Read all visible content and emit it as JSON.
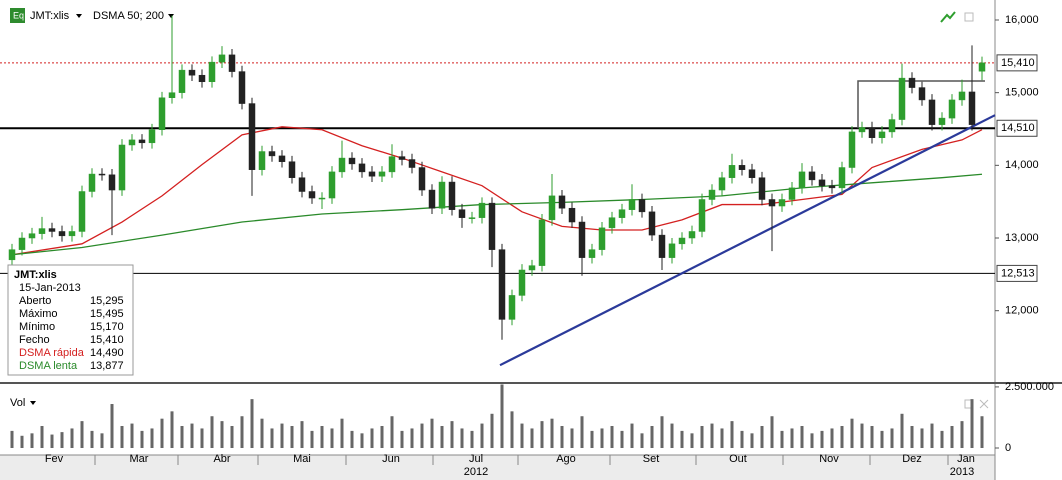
{
  "chart_data": {
    "type": "candlestick",
    "header": {
      "symbol": "JMT:xlis",
      "indicator": "DSMA 50; 200",
      "volume_label": "Vol"
    },
    "xlim": [
      -1.2,
      98.3
    ],
    "ylim": [
      11005,
      16275
    ],
    "yticks": [
      {
        "value": 12000,
        "label": "12,000"
      },
      {
        "value": 13000,
        "label": "13,000"
      },
      {
        "value": 14000,
        "label": "14,000"
      },
      {
        "value": 15000,
        "label": "15,000"
      },
      {
        "value": 16000,
        "label": "16,000"
      }
    ],
    "xticks": [
      {
        "value": 4.2,
        "label": "Fev"
      },
      {
        "value": 12.7,
        "label": "Mar"
      },
      {
        "value": 21,
        "label": "Abr"
      },
      {
        "value": 29,
        "label": "Mai"
      },
      {
        "value": 37.9,
        "label": "Jun"
      },
      {
        "value": 46.4,
        "label": "Jul"
      },
      {
        "value": 55.4,
        "label": "Ago"
      },
      {
        "value": 63.9,
        "label": "Set"
      },
      {
        "value": 72.6,
        "label": "Out"
      },
      {
        "value": 81.7,
        "label": "Nov"
      },
      {
        "value": 90,
        "label": "Dez"
      },
      {
        "value": 95.4,
        "label": "Jan"
      }
    ],
    "month_starts": [
      8.3,
      16.6,
      24.6,
      33.4,
      42.1,
      50.6,
      59.8,
      68.4,
      77.1,
      85.8,
      93.6
    ],
    "year_labels": [
      {
        "value": 46.4,
        "label": "2012"
      },
      {
        "value": 95,
        "label": "2013"
      }
    ],
    "up_color": "#2e9e2e",
    "down_color": "#222222",
    "open": [
      12700,
      12840,
      13000,
      13060,
      13130,
      13090,
      13030,
      13090,
      13640,
      13880,
      13870,
      13660,
      14280,
      14350,
      14310,
      14490,
      14930,
      15000,
      15310,
      15240,
      15150,
      15420,
      15520,
      15290,
      14850,
      13940,
      14190,
      14130,
      14050,
      13830,
      13640,
      13550,
      13550,
      13910,
      14100,
      14020,
      13910,
      13850,
      13910,
      14120,
      14080,
      13970,
      13660,
      13410,
      13770,
      13390,
      13280,
      13280,
      13480,
      12840,
      11880,
      12210,
      12560,
      12620,
      13250,
      13580,
      13410,
      13220,
      12730,
      12840,
      13140,
      13280,
      13390,
      13530,
      13360,
      13040,
      12730,
      12920,
      13000,
      13090,
      13530,
      13660,
      13830,
      14000,
      13940,
      13830,
      13530,
      13440,
      13530,
      13690,
      13910,
      13800,
      13720,
      13690,
      13970,
      14460,
      14520,
      14380,
      14460,
      14630,
      15200,
      15070,
      14900,
      14560,
      14650,
      14900,
      15010,
      15295
    ],
    "high": [
      12920,
      13080,
      13140,
      13290,
      13210,
      13170,
      13170,
      13720,
      13960,
      13960,
      13950,
      14360,
      14430,
      14430,
      14570,
      15010,
      16060,
      15390,
      15390,
      15320,
      15500,
      15640,
      15600,
      15370,
      14930,
      14270,
      14270,
      14210,
      14130,
      13910,
      13720,
      13630,
      13990,
      14340,
      14180,
      14100,
      13990,
      13990,
      14290,
      14200,
      14160,
      14050,
      13740,
      13850,
      13850,
      13470,
      13360,
      13560,
      13560,
      12920,
      12290,
      12640,
      12700,
      13330,
      13880,
      13660,
      13490,
      13300,
      12920,
      13220,
      13360,
      13470,
      13740,
      13610,
      13440,
      13120,
      13000,
      13080,
      13170,
      13610,
      13740,
      13910,
      14160,
      14080,
      14020,
      13910,
      13610,
      13610,
      13770,
      14030,
      13990,
      13880,
      13800,
      14050,
      14540,
      14600,
      14600,
      14540,
      14710,
      15400,
      15280,
      15150,
      14980,
      14730,
      14980,
      15180,
      15650,
      15495
    ],
    "low": [
      12620,
      12760,
      12920,
      12980,
      13010,
      12950,
      12950,
      13010,
      13560,
      13790,
      13040,
      13580,
      14200,
      14230,
      14230,
      14410,
      14850,
      14920,
      15160,
      15070,
      15070,
      15340,
      15210,
      14770,
      13580,
      13860,
      14050,
      13970,
      13750,
      13560,
      13470,
      13400,
      13470,
      13830,
      13940,
      13830,
      13770,
      13770,
      13830,
      14000,
      13890,
      13580,
      13330,
      13330,
      13310,
      13140,
      13200,
      13200,
      12600,
      11600,
      11800,
      12130,
      12480,
      12540,
      13170,
      13330,
      13140,
      12480,
      12650,
      12760,
      13060,
      13200,
      13310,
      13280,
      12960,
      12560,
      12650,
      12840,
      12920,
      13010,
      13450,
      13580,
      13750,
      13860,
      13750,
      13450,
      12820,
      13360,
      13450,
      13610,
      13720,
      13640,
      13610,
      13610,
      13890,
      14380,
      14300,
      14300,
      14380,
      14550,
      14990,
      14820,
      14480,
      14480,
      14570,
      14820,
      14480,
      15170
    ],
    "close": [
      12840,
      13000,
      13060,
      13130,
      13090,
      13030,
      13090,
      13640,
      13880,
      13870,
      13660,
      14280,
      14350,
      14310,
      14490,
      14930,
      15000,
      15310,
      15240,
      15150,
      15420,
      15520,
      15290,
      14850,
      13940,
      14190,
      14130,
      14050,
      13830,
      13640,
      13550,
      13550,
      13910,
      14100,
      14020,
      13910,
      13850,
      13910,
      14120,
      14080,
      13970,
      13660,
      13410,
      13770,
      13390,
      13280,
      13280,
      13480,
      12840,
      11880,
      12210,
      12560,
      12620,
      13250,
      13580,
      13410,
      13220,
      12730,
      12840,
      13140,
      13280,
      13390,
      13530,
      13360,
      13040,
      12730,
      12920,
      13000,
      13090,
      13530,
      13660,
      13830,
      14000,
      13940,
      13830,
      13530,
      13440,
      13530,
      13690,
      13910,
      13800,
      13720,
      13690,
      13970,
      14460,
      14520,
      14380,
      14460,
      14630,
      15200,
      15070,
      14900,
      14560,
      14650,
      14900,
      15010,
      14560,
      15410
    ],
    "series": [
      {
        "name": "DSMA rápida",
        "color": "#d42020",
        "x": [
          0,
          7,
          11,
          15,
          19,
          23,
          27,
          31,
          35,
          39,
          43,
          47,
          51,
          55,
          59,
          63,
          67,
          71,
          75,
          79,
          83,
          86,
          91,
          95,
          97
        ],
        "values": [
          12770,
          12920,
          13220,
          13580,
          14010,
          14420,
          14530,
          14490,
          14270,
          14100,
          13910,
          13720,
          13360,
          13160,
          13110,
          13110,
          13250,
          13460,
          13460,
          13530,
          13600,
          13970,
          14220,
          14350,
          14490
        ]
      },
      {
        "name": "DSMA lenta",
        "color": "#2a8a2a",
        "x": [
          0,
          7,
          15,
          23,
          31,
          39,
          47,
          55,
          63,
          71,
          79,
          87,
          93,
          97
        ],
        "values": [
          12770,
          12870,
          13040,
          13220,
          13330,
          13390,
          13460,
          13490,
          13530,
          13580,
          13690,
          13770,
          13830,
          13877
        ]
      }
    ],
    "levels": [
      {
        "value": 15410,
        "label": "15,410",
        "style": "dotted",
        "color": "#d42020"
      },
      {
        "value": 14510,
        "label": "14,510",
        "style": "thick",
        "color": "#000000"
      },
      {
        "value": 12513,
        "label": "12,513",
        "style": "thin",
        "color": "#000000"
      }
    ],
    "trendline": {
      "color": "#2b3a9a",
      "x": [
        48.8,
        98.3
      ],
      "values": [
        11250,
        14690
      ]
    },
    "box_line": {
      "color": "#555555",
      "x": [
        84.6,
        84.6,
        97.3
      ],
      "values": [
        14510,
        15160,
        15160
      ]
    },
    "volume": {
      "color": "#666666",
      "ylim": [
        0,
        2660000
      ],
      "yticks": [
        0,
        {
          "value": 2500000,
          "label": "2.500.000"
        }
      ],
      "values": [
        700000,
        500000,
        600000,
        900000,
        550000,
        650000,
        800000,
        1100000,
        700000,
        600000,
        1800000,
        900000,
        1000000,
        700000,
        800000,
        1200000,
        1500000,
        900000,
        1000000,
        800000,
        1300000,
        1100000,
        900000,
        1300000,
        2000000,
        1200000,
        800000,
        1000000,
        900000,
        1100000,
        700000,
        900000,
        800000,
        1200000,
        700000,
        600000,
        800000,
        900000,
        1300000,
        700000,
        800000,
        1000000,
        1200000,
        900000,
        1100000,
        800000,
        700000,
        1000000,
        1400000,
        2600000,
        1500000,
        1000000,
        800000,
        1100000,
        1200000,
        900000,
        800000,
        1300000,
        700000,
        800000,
        900000,
        700000,
        1000000,
        600000,
        900000,
        1300000,
        1000000,
        700000,
        600000,
        900000,
        1000000,
        800000,
        1100000,
        700000,
        600000,
        900000,
        1300000,
        700000,
        800000,
        900000,
        600000,
        700000,
        800000,
        900000,
        1200000,
        1000000,
        900000,
        700000,
        800000,
        1400000,
        900000,
        800000,
        1000000,
        700000,
        900000,
        1100000,
        2000000,
        1300000
      ]
    },
    "info": {
      "symbol": "JMT:xlis",
      "date": "15-Jan-2013",
      "rows": [
        {
          "label": "Aberto",
          "value": "15,295"
        },
        {
          "label": "Máximo",
          "value": "15,495"
        },
        {
          "label": "Mínimo",
          "value": "15,170"
        },
        {
          "label": "Fecho",
          "value": "15,410"
        }
      ],
      "ma_values": [
        "14,490",
        "13,877"
      ]
    }
  }
}
